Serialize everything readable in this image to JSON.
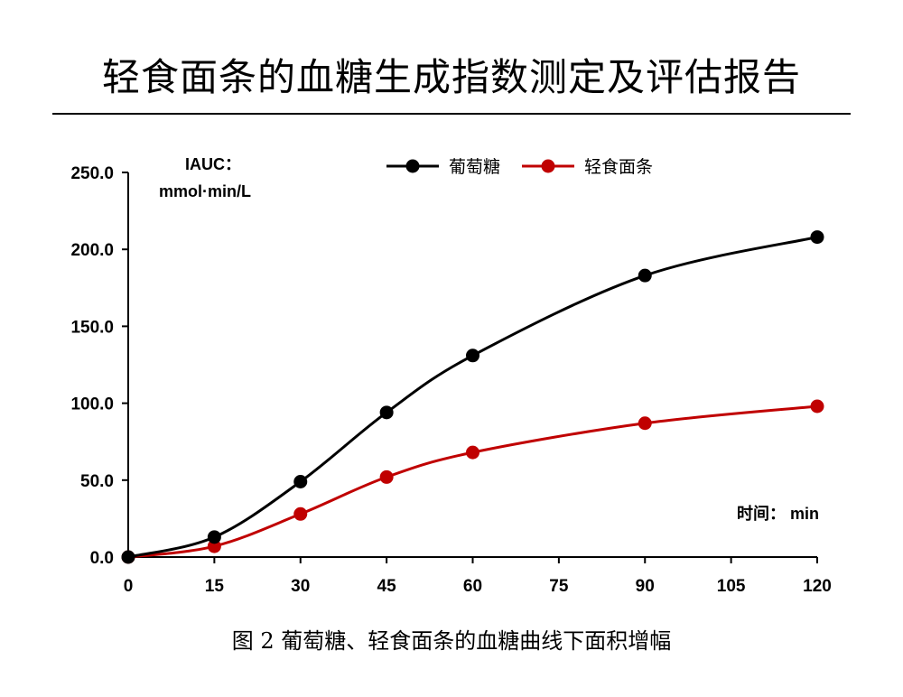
{
  "page": {
    "title": "轻食面条的血糖生成指数测定及评估报告",
    "caption": "图  2 葡萄糖、轻食面条的血糖曲线下面积增幅"
  },
  "chart_data": {
    "type": "line",
    "ylabel_line1": "IAUC：",
    "ylabel_line2": "mmol·min/L",
    "xlabel": "时间： min",
    "x": [
      0,
      15,
      30,
      45,
      60,
      90,
      120
    ],
    "x_ticks": [
      "0",
      "15",
      "30",
      "45",
      "60",
      "75",
      "90",
      "105",
      "120"
    ],
    "y_ticks": [
      "0.0",
      "50.0",
      "100.0",
      "150.0",
      "200.0",
      "250.0"
    ],
    "ylim": [
      0,
      250
    ],
    "xlim": [
      0,
      120
    ],
    "legend_position": "top",
    "series": [
      {
        "name": "葡萄糖",
        "color": "#000000",
        "values": [
          0,
          13,
          49,
          94,
          131,
          183,
          208
        ]
      },
      {
        "name": "轻食面条",
        "color": "#c00000",
        "values": [
          0,
          7,
          28,
          52,
          68,
          87,
          98
        ]
      }
    ]
  }
}
